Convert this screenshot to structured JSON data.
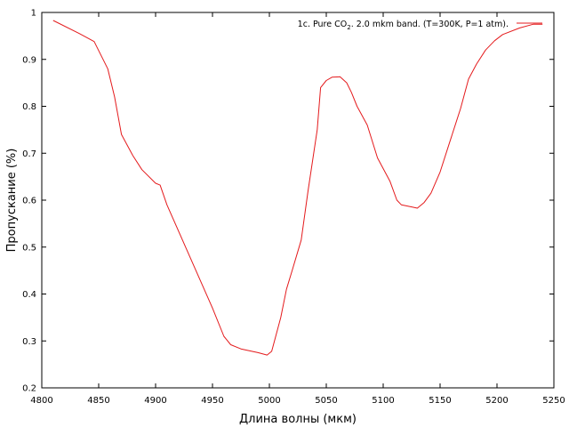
{
  "chart_data": {
    "type": "line",
    "xlabel": "Длина волны (мкм)",
    "ylabel": "Пропускание (%)",
    "xlim": [
      4800,
      5250
    ],
    "ylim": [
      0.2,
      1.0
    ],
    "x_ticks": [
      4800,
      4850,
      4900,
      4950,
      5000,
      5050,
      5100,
      5150,
      5200,
      5250
    ],
    "y_ticks": [
      0.2,
      0.3,
      0.4,
      0.5,
      0.6,
      0.7,
      0.8,
      0.9,
      1.0
    ],
    "x_tick_labels": [
      "4800",
      "4850",
      "4900",
      "4950",
      "5000",
      "5050",
      "5100",
      "5150",
      "5200",
      "5250"
    ],
    "y_tick_labels": [
      "0.2",
      "0.3",
      "0.4",
      "0.5",
      "0.6",
      "0.7",
      "0.8",
      "0.9",
      "1"
    ],
    "grid": false,
    "legend_position": "top-right",
    "legend": {
      "prefix": "1c. Pure CO",
      "subscript": "2",
      "suffix": ". 2.0 mkm band. (T=300K, P=1 atm)."
    },
    "series": [
      {
        "color": "#e41a1c",
        "x": [
          4810,
          4833,
          4846,
          4858,
          4864,
          4870,
          4880,
          4888,
          4900,
          4904,
          4910,
          4930,
          4950,
          4960,
          4966,
          4975,
          4990,
          4998,
          5002,
          5010,
          5015,
          5020,
          5028,
          5034,
          5042,
          5045,
          5050,
          5055,
          5062,
          5068,
          5072,
          5077,
          5086,
          5095,
          5106,
          5112,
          5116,
          5126,
          5130,
          5136,
          5142,
          5150,
          5158,
          5168,
          5175,
          5182,
          5190,
          5198,
          5205,
          5220,
          5232,
          5240
        ],
        "y": [
          0.983,
          0.955,
          0.938,
          0.88,
          0.82,
          0.74,
          0.695,
          0.665,
          0.636,
          0.632,
          0.59,
          0.48,
          0.37,
          0.31,
          0.292,
          0.283,
          0.275,
          0.27,
          0.278,
          0.35,
          0.41,
          0.45,
          0.515,
          0.62,
          0.75,
          0.84,
          0.855,
          0.862,
          0.863,
          0.85,
          0.83,
          0.8,
          0.76,
          0.69,
          0.64,
          0.6,
          0.59,
          0.585,
          0.583,
          0.595,
          0.615,
          0.66,
          0.72,
          0.795,
          0.858,
          0.89,
          0.92,
          0.94,
          0.953,
          0.967,
          0.975,
          0.975
        ]
      }
    ]
  }
}
